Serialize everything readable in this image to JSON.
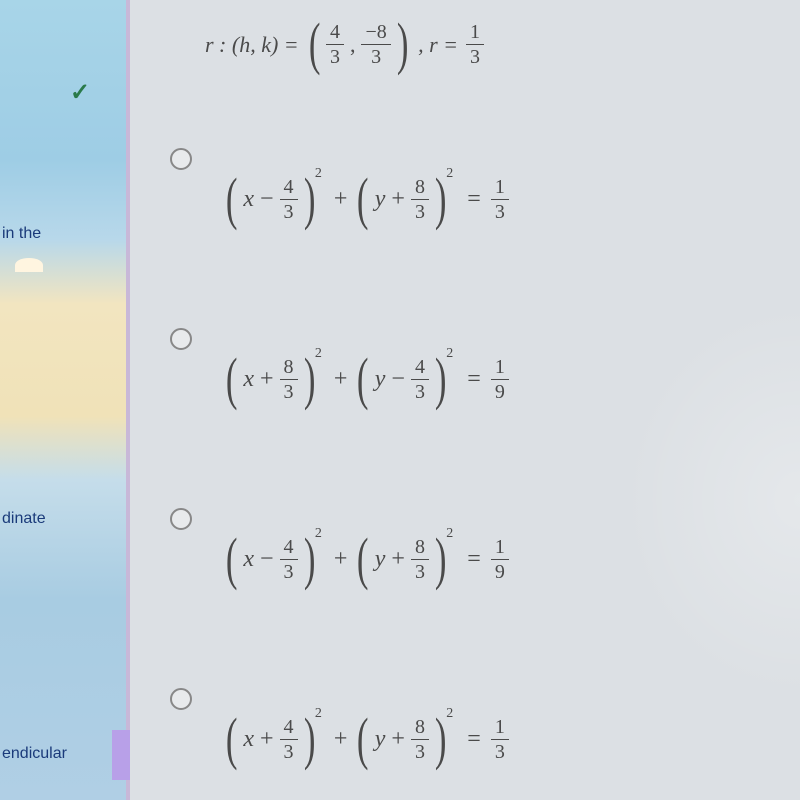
{
  "sidebar": {
    "check": "✓",
    "item1": "in the",
    "item2": "dinate",
    "item3": "endicular"
  },
  "question": {
    "lead": "r :  (h, k) =",
    "h_num": "4",
    "h_den": "3",
    "k_num": "−8",
    "k_den": "3",
    "r_label": ", r =",
    "r_num": "1",
    "r_den": "3"
  },
  "options": [
    {
      "x_sign": "−",
      "x_num": "4",
      "x_den": "3",
      "y_sign": "+",
      "y_num": "8",
      "y_den": "3",
      "rhs_num": "1",
      "rhs_den": "3"
    },
    {
      "x_sign": "+",
      "x_num": "8",
      "x_den": "3",
      "y_sign": "−",
      "y_num": "4",
      "y_den": "3",
      "rhs_num": "1",
      "rhs_den": "9"
    },
    {
      "x_sign": "−",
      "x_num": "4",
      "x_den": "3",
      "y_sign": "+",
      "y_num": "8",
      "y_den": "3",
      "rhs_num": "1",
      "rhs_den": "9"
    },
    {
      "x_sign": "+",
      "x_num": "4",
      "x_den": "3",
      "y_sign": "+",
      "y_num": "8",
      "y_den": "3",
      "rhs_num": "1",
      "rhs_den": "3"
    }
  ],
  "colors": {
    "sidebar_top": "#a8d5e8",
    "sidebar_mid": "#f0e2b8",
    "content_bg": "#dce0e4",
    "text": "#4a4a4a",
    "link": "#1a3a7a",
    "check": "#2a7a4a"
  },
  "typography": {
    "math_fontsize": 24,
    "frac_fontsize": 20,
    "paren_fontsize": 58
  }
}
